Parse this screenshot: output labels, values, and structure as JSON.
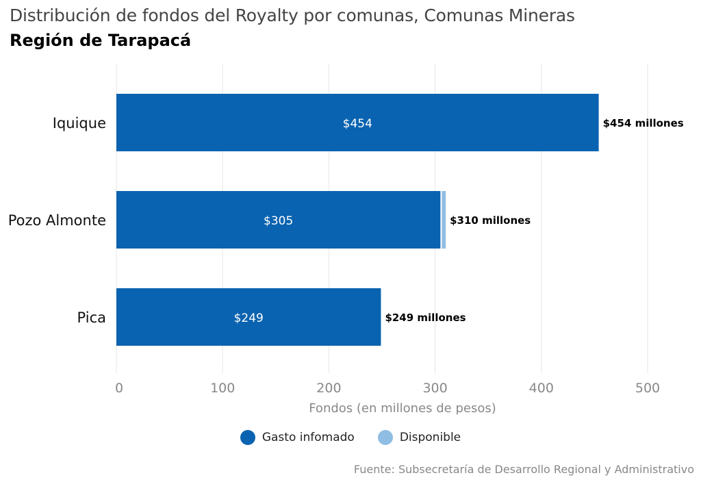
{
  "header": {
    "title": "Distribución de fondos del Royalty por comunas, Comunas Mineras",
    "subtitle": "Región de Tarapacá"
  },
  "legend": [
    {
      "label": "Gasto infomado",
      "color": "#0a63b0"
    },
    {
      "label": "Disponible",
      "color": "#8fbde3"
    }
  ],
  "source": "Fuente: Subsecretaría de Desarrollo Regional y Administrativo",
  "chart_data": {
    "type": "bar",
    "orientation": "horizontal",
    "stacked": true,
    "categories": [
      "Iquique",
      "Pozo Almonte",
      "Pica"
    ],
    "series": [
      {
        "name": "Gasto infomado",
        "values": [
          454,
          305,
          249
        ],
        "color": "#0a63b0",
        "labels": [
          "$454",
          "$305",
          "$249"
        ]
      },
      {
        "name": "Disponible",
        "values": [
          0,
          5,
          0
        ],
        "color": "#8fbde3"
      }
    ],
    "total_labels": [
      "$454 millones",
      "$310 millones",
      "$249 millones"
    ],
    "xlabel": "Fondos (en millones de pesos)",
    "ylabel": "",
    "xlim": [
      0,
      500
    ],
    "xticks": [
      0,
      100,
      200,
      300,
      400,
      500
    ],
    "grid": "vertical",
    "legend_position": "bottom"
  }
}
